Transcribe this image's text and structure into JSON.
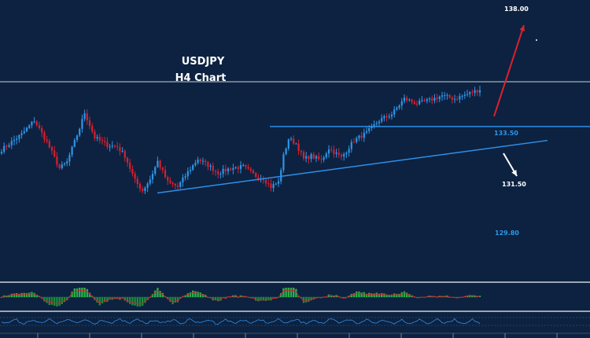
{
  "chart_data": {
    "type": "candlestick",
    "title": "USDJPY",
    "subtitle": "H4 Chart",
    "colors": {
      "background": "#0c2240",
      "bull": "#2f95e8",
      "bear": "#d81f2f",
      "level_line": "#2f8ee8",
      "trendline": "#2f8ee8",
      "target_up_arrow": "#e0202a",
      "target_down_arrow": "#ffffff",
      "histogram_pos": "#27b24a",
      "histogram_neg": "#1a8c3c",
      "signal_line": "#d81f2f",
      "oscillator_line": "#2f8ee8"
    },
    "ylim": [
      128.6,
      138.4
    ],
    "price_anchors": [
      {
        "i": 0,
        "p": 132.0
      },
      {
        "i": 8,
        "p": 133.0
      },
      {
        "i": 13,
        "p": 133.9
      },
      {
        "i": 18,
        "p": 132.5
      },
      {
        "i": 23,
        "p": 130.8
      },
      {
        "i": 26,
        "p": 131.2
      },
      {
        "i": 31,
        "p": 133.4
      },
      {
        "i": 33,
        "p": 134.4
      },
      {
        "i": 37,
        "p": 132.8
      },
      {
        "i": 42,
        "p": 132.3
      },
      {
        "i": 46,
        "p": 132.2
      },
      {
        "i": 49,
        "p": 131.6
      },
      {
        "i": 53,
        "p": 130.0
      },
      {
        "i": 56,
        "p": 129.35
      },
      {
        "i": 59,
        "p": 130.1
      },
      {
        "i": 62,
        "p": 131.25
      },
      {
        "i": 66,
        "p": 129.9
      },
      {
        "i": 70,
        "p": 129.6
      },
      {
        "i": 74,
        "p": 130.55
      },
      {
        "i": 78,
        "p": 131.4
      },
      {
        "i": 82,
        "p": 131.0
      },
      {
        "i": 86,
        "p": 130.5
      },
      {
        "i": 91,
        "p": 130.8
      },
      {
        "i": 96,
        "p": 130.9
      },
      {
        "i": 101,
        "p": 130.3
      },
      {
        "i": 104,
        "p": 130.15
      },
      {
        "i": 107,
        "p": 129.6
      },
      {
        "i": 110,
        "p": 129.9
      },
      {
        "i": 112,
        "p": 131.6
      },
      {
        "i": 114,
        "p": 132.7
      },
      {
        "i": 117,
        "p": 132.4
      },
      {
        "i": 120,
        "p": 131.4
      },
      {
        "i": 123,
        "p": 131.6
      },
      {
        "i": 127,
        "p": 131.3
      },
      {
        "i": 130,
        "p": 132.1
      },
      {
        "i": 135,
        "p": 131.5
      },
      {
        "i": 140,
        "p": 132.6
      },
      {
        "i": 145,
        "p": 133.1
      },
      {
        "i": 150,
        "p": 133.9
      },
      {
        "i": 155,
        "p": 134.3
      },
      {
        "i": 160,
        "p": 135.3
      },
      {
        "i": 165,
        "p": 135.0
      },
      {
        "i": 170,
        "p": 135.2
      },
      {
        "i": 175,
        "p": 135.5
      },
      {
        "i": 180,
        "p": 135.3
      },
      {
        "i": 185,
        "p": 135.6
      },
      {
        "i": 190,
        "p": 135.9
      }
    ],
    "horizontal_levels": [
      {
        "value": 136.4,
        "label": ""
      },
      {
        "value": 133.5,
        "label": "133.50"
      }
    ],
    "support_trendline": {
      "from": [
        0,
        129.2
      ],
      "to": [
        210,
        132.6
      ]
    },
    "targets": [
      {
        "label": "138.00",
        "value": 138.0,
        "direction": "up"
      },
      {
        "label": "131.50",
        "value": 131.5,
        "direction": "down"
      },
      {
        "label": "129.80",
        "value": 129.8,
        "direction": "support"
      }
    ],
    "indicators": [
      {
        "name": "",
        "kind": "histogram"
      },
      {
        "name": "",
        "kind": "oscillator"
      }
    ]
  }
}
